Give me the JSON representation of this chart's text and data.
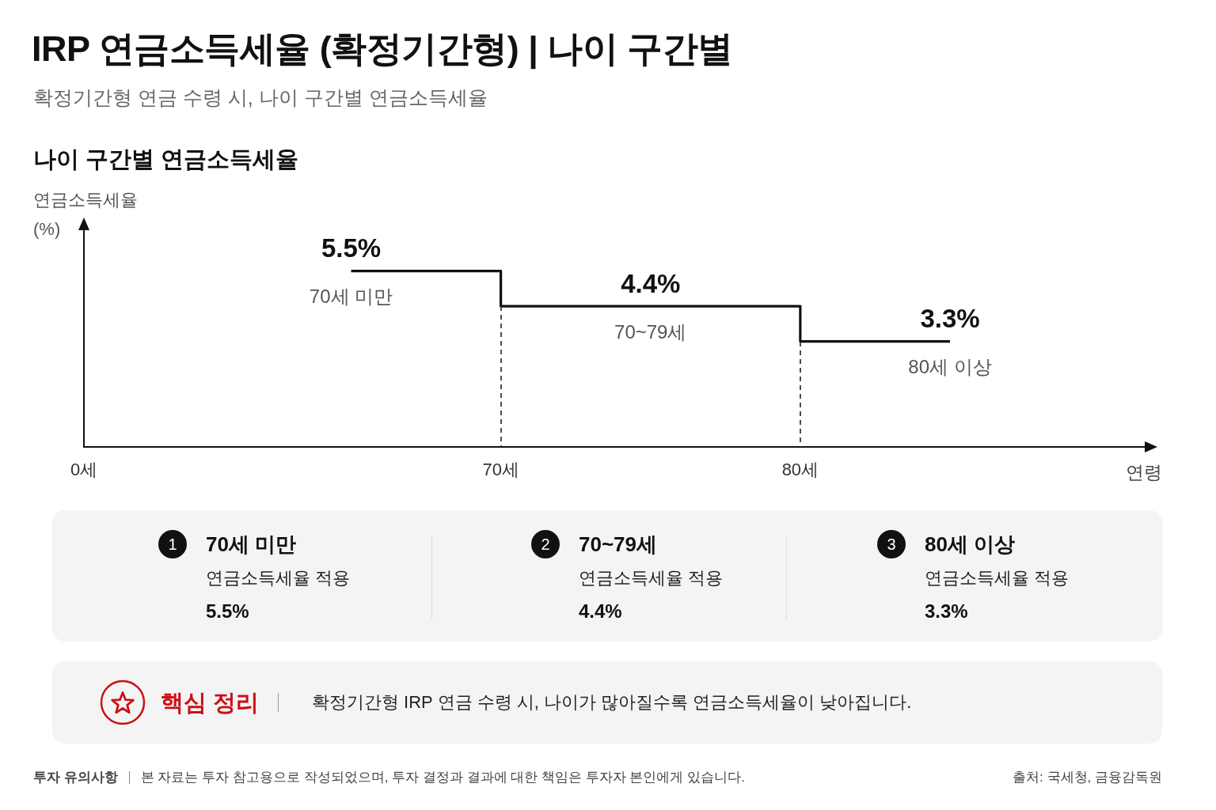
{
  "chart_data": [
    {
      "type": "step",
      "title": "IRP 연금소득세율 (확정기간형) | 나이 구간별",
      "subtitle": "확정기간형 연금 수령 시, 나이 구간별 연금소득세율",
      "ylabel": "연금소득세율 (%)",
      "xlabel": "연령",
      "categories": [
        "70세 미만",
        "70~79세",
        "80세 이상"
      ],
      "values": [
        5.5,
        4.4,
        3.3
      ],
      "value_labels": [
        "5.5%",
        "4.4%",
        "3.3%"
      ],
      "color": "#111111",
      "tick_labels": "x",
      "annotations": [
        "나이 구간별 연금소득세율",
        "0세",
        "70세",
        "80세"
      ]
    },
    {
      "type": "other",
      "annotations": [
        "1",
        "70세 미만",
        "연금소득세율 적용",
        "5.5%",
        "2",
        "70~79세",
        "연금소득세율 적용",
        "4.4%",
        "3",
        "80세 이상",
        "연금소득세율 적용",
        "3.3%"
      ]
    },
    {
      "type": "other",
      "title": "핵심 정리",
      "annotations": [
        "확정기간형 IRP 연금 수령 시, 나이가 많아질수록 연금소득세율이 낮아집니다.",
        "투자 유의사항",
        "본 자료는 투자 참고용으로 작성되었으며, 투자 결정과 결과에 대한 책임은 투자자 본인에게 있습니다.",
        "출처: 국세청, 금융감독원"
      ]
    }
  ]
}
